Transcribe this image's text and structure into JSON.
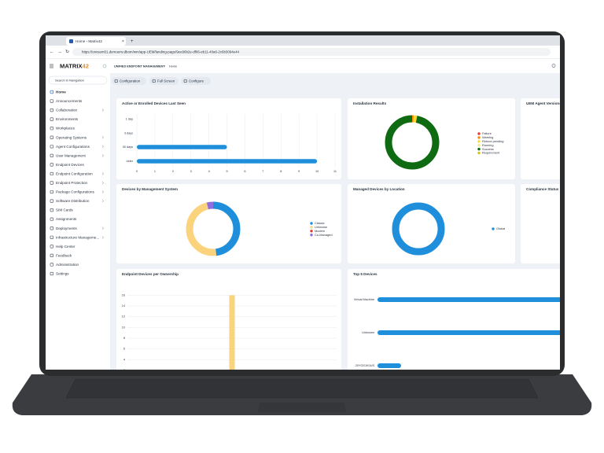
{
  "browser": {
    "tab_title": "Home › Matrix42",
    "url": "https://onvsem01.demoenv.dbom/wm/app-UEM/landing-page/9ee96b2e-df06-eb11-40a6-2c6b3094e44"
  },
  "header": {
    "logo": "MATRIX",
    "logo_accent": "42",
    "breadcrumb": [
      "UNIFIED ENDPOINT MANAGEMENT",
      "Home"
    ]
  },
  "sidebar": {
    "search_placeholder": "Search in Navigation",
    "items": [
      {
        "label": "Home",
        "active": true
      },
      {
        "label": "Announcements"
      },
      {
        "label": "Collaboration",
        "expandable": true
      },
      {
        "label": "Environments"
      },
      {
        "label": "Workplaces"
      },
      {
        "label": "Operating Systems",
        "expandable": true
      },
      {
        "label": "Agent Configurations",
        "expandable": true
      },
      {
        "label": "User Management",
        "expandable": true
      },
      {
        "label": "Endpoint Devices"
      },
      {
        "label": "Endpoint Configuration",
        "expandable": true
      },
      {
        "label": "Endpoint Protection",
        "expandable": true
      },
      {
        "label": "Package Configurations",
        "expandable": true
      },
      {
        "label": "Software Distribution",
        "expandable": true
      },
      {
        "label": "SIM Cards"
      },
      {
        "label": "Assignments"
      },
      {
        "label": "Deployments",
        "expandable": true
      },
      {
        "label": "Infrastructure Manageme...",
        "expandable": true
      },
      {
        "label": "Help Center"
      },
      {
        "label": "Feedback"
      },
      {
        "label": "Administration"
      },
      {
        "label": "Settings"
      }
    ]
  },
  "toolbar": {
    "buttons": [
      "Configuration",
      "Full Screen",
      "Configure"
    ]
  },
  "widgets": [
    {
      "title": "UEM Agent Versions"
    },
    {
      "title": "Compliance Status"
    }
  ],
  "chart_data": [
    {
      "type": "hbar",
      "title": "Active or Enrolled Devices Last Seen",
      "categories": [
        "1 day",
        "3 days",
        "30 days",
        "older"
      ],
      "values": [
        0,
        0,
        5,
        10
      ],
      "color": "#1f8fdb",
      "xlim": [
        0,
        11
      ],
      "xticks": [
        0,
        1,
        2,
        3,
        4,
        5,
        6,
        7,
        8,
        9,
        10,
        11
      ],
      "grid": true
    },
    {
      "type": "donut",
      "title": "Installation Results",
      "categories": [
        "Failure",
        "Warning",
        "Reboot pending",
        "Running",
        "Success",
        "Requirement"
      ],
      "values": [
        0,
        1,
        2,
        0,
        97,
        0
      ],
      "colors": [
        "#e53935",
        "#fb8c00",
        "#fdd835",
        "#f3ea8c",
        "#0f6b12",
        "#d4c21a"
      ]
    },
    {
      "type": "donut",
      "title": "Devices by Management System",
      "categories": [
        "Classic",
        "Unknown",
        "Modern",
        "Co-Managed"
      ],
      "values": [
        48,
        48,
        0,
        4
      ],
      "colors": [
        "#1f8fdb",
        "#fbd37c",
        "#e53935",
        "#8f6fe0"
      ]
    },
    {
      "type": "donut",
      "title": "Managed Devices by Location",
      "categories": [
        "Global"
      ],
      "values": [
        100
      ],
      "colors": [
        "#1f8fdb"
      ]
    },
    {
      "type": "vbar",
      "title": "Endpoint Devices per Ownership",
      "categories": [
        null
      ],
      "values": [
        16
      ],
      "color": "#fbd37c",
      "ylim": [
        0,
        17
      ],
      "yticks": [
        0,
        2,
        4,
        6,
        8,
        10,
        12,
        14,
        16
      ],
      "grid": true
    },
    {
      "type": "hbar",
      "title": "Top 5 Devices",
      "categories": [
        "Virtual Machine",
        "Unknown",
        "20YGS1K0US"
      ],
      "values": [
        10,
        9,
        1
      ],
      "color": "#1f8fdb",
      "xlim": [
        0,
        12
      ],
      "grid": false
    }
  ]
}
